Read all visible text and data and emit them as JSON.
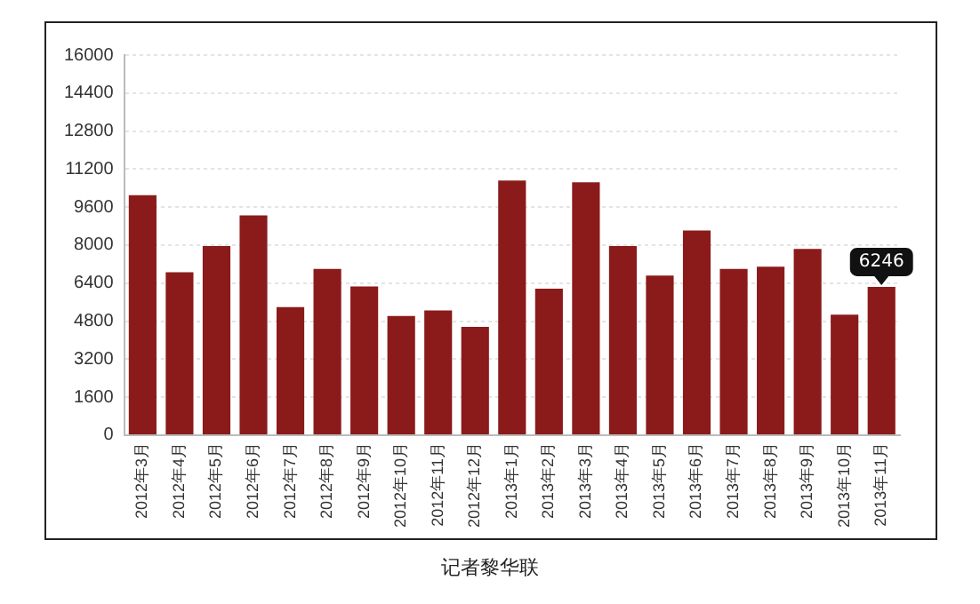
{
  "chart_data": {
    "type": "bar",
    "categories": [
      "2012年3月",
      "2012年4月",
      "2012年5月",
      "2012年6月",
      "2012年7月",
      "2012年8月",
      "2012年9月",
      "2012年10月",
      "2012年11月",
      "2012年12月",
      "2013年1月",
      "2013年2月",
      "2013年3月",
      "2013年4月",
      "2013年5月",
      "2013年6月",
      "2013年7月",
      "2013年8月",
      "2013年9月",
      "2013年10月",
      "2013年11月"
    ],
    "values": [
      10100,
      6860,
      7960,
      9250,
      5390,
      7000,
      6260,
      5020,
      5250,
      4560,
      10720,
      6170,
      10640,
      7960,
      6720,
      8620,
      7000,
      7090,
      7840,
      5070,
      6246
    ],
    "color": "#8b1a1a",
    "ylim": [
      0,
      16000
    ],
    "yticks": [
      0,
      1600,
      3200,
      4800,
      6400,
      8000,
      9600,
      11200,
      12800,
      14400,
      16000
    ],
    "grid": "y",
    "annotations": [
      {
        "text": "6246",
        "x": "2013年11月",
        "y": 6246
      },
      "记者黎华联"
    ]
  }
}
